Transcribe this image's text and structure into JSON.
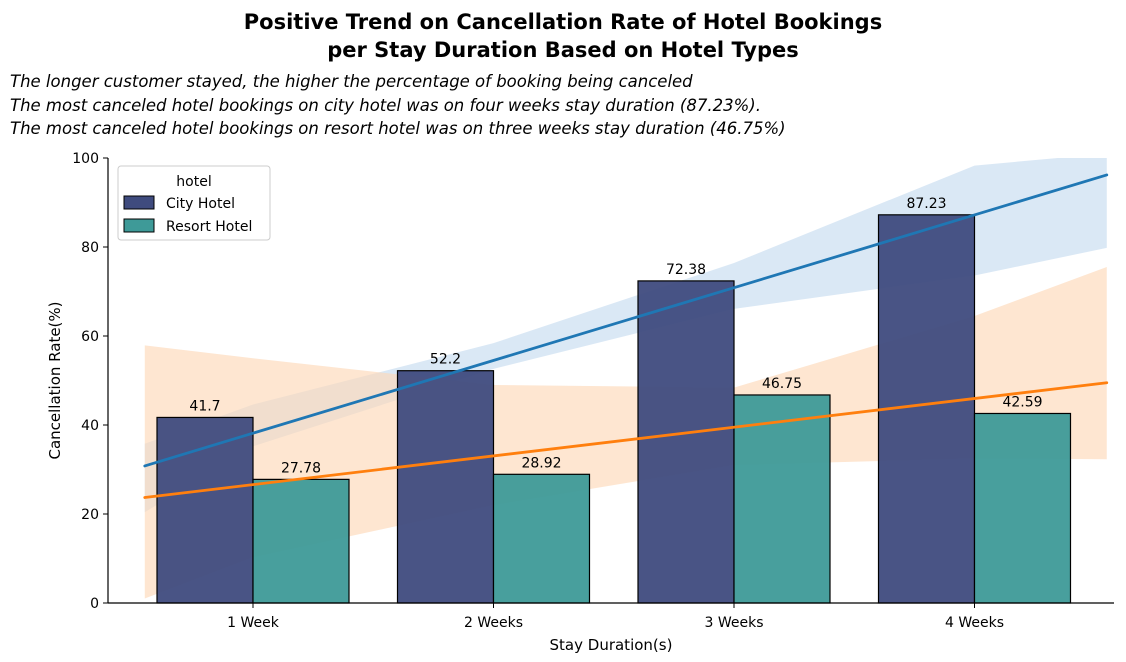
{
  "chart_data": {
    "type": "bar",
    "title": [
      "Positive Trend on Cancellation Rate of Hotel Bookings",
      "per Stay Duration Based on Hotel Types"
    ],
    "annotations": [
      "The longer customer stayed, the higher the percentage of booking being canceled",
      "The most canceled hotel bookings on city hotel was on four weeks stay duration (87.23%).",
      "The most canceled hotel bookings on resort hotel was on three weeks stay duration (46.75%)"
    ],
    "xlabel": "Stay Duration(s)",
    "ylabel": "Cancellation Rate(%)",
    "ylim": [
      0,
      100
    ],
    "yticks": [
      "0",
      "20",
      "40",
      "60",
      "80",
      "100"
    ],
    "categories": [
      "1 Week",
      "2 Weeks",
      "3 Weeks",
      "4 Weeks"
    ],
    "legend": {
      "title": "hotel",
      "placement": "top-left"
    },
    "series": [
      {
        "name": "City Hotel",
        "values": [
          41.7,
          52.2,
          72.38,
          87.23
        ],
        "labels": [
          "41.7",
          "52.2",
          "72.38",
          "87.23"
        ],
        "color": "#3f4b7e"
      },
      {
        "name": "Resort Hotel",
        "values": [
          27.78,
          28.92,
          46.75,
          42.59
        ],
        "labels": [
          "27.78",
          "28.92",
          "46.75",
          "42.59"
        ],
        "color": "#3e9a98"
      }
    ],
    "trendlines": [
      {
        "name": "City Hotel",
        "color": "#1f77b4",
        "band_color": "#c6dbef",
        "x": [
          0.55,
          1,
          2,
          3,
          4,
          4.55
        ],
        "y": [
          30.8,
          40.3,
          55.7,
          71.1,
          86.6,
          96.2
        ],
        "band_low": [
          20.4,
          35.2,
          52.6,
          66.1,
          73.6,
          79.8
        ],
        "band_high": [
          35.8,
          44.6,
          58.4,
          76.4,
          98.3,
          101
        ]
      },
      {
        "name": "Resort Hotel",
        "color": "#ff7f0e",
        "band_color": "#fdd9b9",
        "x": [
          0.55,
          1,
          2,
          3,
          4,
          4.55
        ],
        "y": [
          23.7,
          27.1,
          33.4,
          39.7,
          46.0,
          49.5
        ],
        "band_low": [
          1,
          10.3,
          22.0,
          31.0,
          32.5,
          32.3
        ],
        "band_high": [
          57.9,
          55.0,
          49.0,
          48.4,
          64.5,
          75.5
        ]
      }
    ]
  }
}
